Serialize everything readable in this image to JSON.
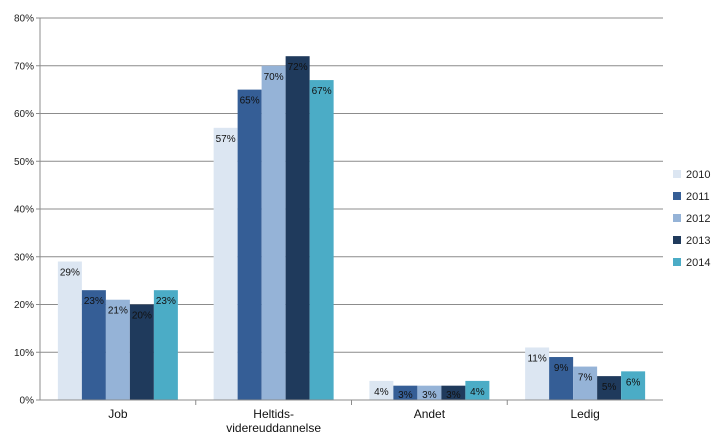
{
  "chart_data": {
    "type": "bar",
    "title": "",
    "xlabel": "",
    "ylabel": "",
    "categories": [
      "Job",
      "Heltids-\nvidereuddannelse",
      "Andet",
      "Ledig"
    ],
    "ylim": [
      0,
      80
    ],
    "yticks": [
      "0%",
      "10%",
      "20%",
      "30%",
      "40%",
      "50%",
      "60%",
      "70%",
      "80%"
    ],
    "grid": true,
    "legend_position": "right",
    "series": [
      {
        "name": "2010",
        "color": "#dce6f2",
        "values": [
          29,
          57,
          4,
          11
        ],
        "labels": [
          "29%",
          "57%",
          "4%",
          "11%"
        ]
      },
      {
        "name": "2011",
        "color": "#355e96",
        "values": [
          23,
          65,
          3,
          9
        ],
        "labels": [
          "23%",
          "65%",
          "3%",
          "9%"
        ]
      },
      {
        "name": "2012",
        "color": "#95b3d7",
        "values": [
          21,
          70,
          3,
          7
        ],
        "labels": [
          "21%",
          "70%",
          "3%",
          "7%"
        ]
      },
      {
        "name": "2013",
        "color": "#1f3a5c",
        "values": [
          20,
          72,
          3,
          5
        ],
        "labels": [
          "20%",
          "72%",
          "3%",
          "5%"
        ]
      },
      {
        "name": "2014",
        "color": "#4bacc6",
        "values": [
          23,
          67,
          4,
          6
        ],
        "labels": [
          "23%",
          "67%",
          "4%",
          "6%"
        ]
      }
    ]
  }
}
